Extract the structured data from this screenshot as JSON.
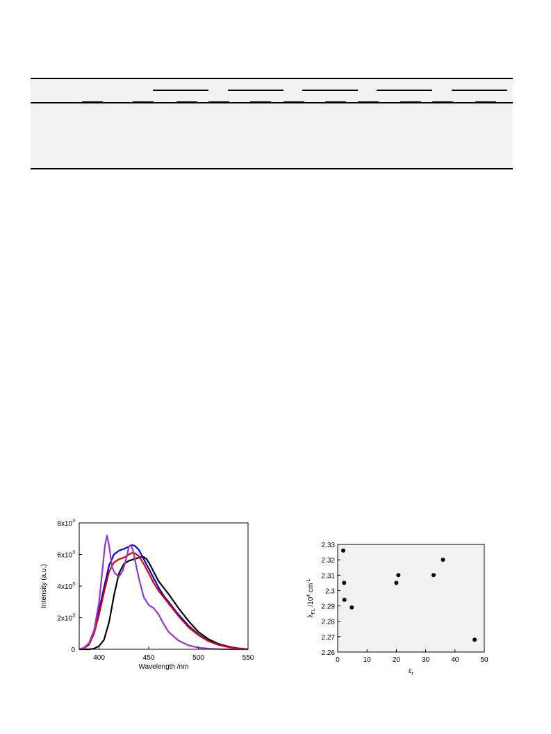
{
  "table": {
    "header_groups": 5,
    "subcolumns": 10,
    "rows": []
  },
  "chart_data": [
    {
      "type": "line",
      "title": "",
      "xlabel": "Wavelength /nm",
      "ylabel": "Intensity (a.u.)",
      "xlim": [
        380,
        550
      ],
      "ylim": [
        0,
        8000
      ],
      "xticks": [
        400,
        450,
        500,
        550
      ],
      "xtick_labels": [
        "400",
        "450",
        "500",
        "550"
      ],
      "yticks": [
        0,
        2000,
        4000,
        6000,
        8000
      ],
      "ytick_labels": [
        "0",
        "2x10",
        "4x10",
        "6x10",
        "8x10"
      ],
      "ytick_exponents": [
        "",
        "3",
        "3",
        "3",
        "3"
      ],
      "grid": false,
      "series": [
        {
          "color": "#000000",
          "x": [
            380,
            390,
            395,
            400,
            405,
            410,
            415,
            420,
            425,
            430,
            435,
            440,
            443,
            445,
            448,
            450,
            455,
            460,
            465,
            470,
            480,
            490,
            500,
            510,
            520,
            530,
            540,
            550
          ],
          "y": [
            0,
            0,
            50,
            200,
            600,
            1700,
            3400,
            4800,
            5400,
            5600,
            5700,
            5800,
            5850,
            5840,
            5700,
            5500,
            4900,
            4300,
            3900,
            3500,
            2600,
            1800,
            1100,
            650,
            350,
            170,
            60,
            0
          ]
        },
        {
          "color": "#0000dd",
          "x": [
            380,
            385,
            390,
            395,
            400,
            405,
            410,
            415,
            420,
            425,
            430,
            433,
            436,
            440,
            445,
            450,
            455,
            460,
            465,
            470,
            480,
            490,
            500,
            510,
            520,
            530,
            540,
            550
          ],
          "y": [
            0,
            80,
            400,
            1200,
            2500,
            3900,
            5300,
            6000,
            6250,
            6350,
            6500,
            6600,
            6550,
            6300,
            5700,
            5100,
            4500,
            3900,
            3400,
            3000,
            2200,
            1500,
            950,
            550,
            300,
            150,
            50,
            0
          ]
        },
        {
          "color": "#dd0000",
          "x": [
            380,
            385,
            390,
            395,
            400,
            405,
            410,
            415,
            420,
            425,
            430,
            433,
            436,
            440,
            445,
            450,
            455,
            460,
            465,
            470,
            480,
            490,
            500,
            510,
            520,
            530,
            540,
            550
          ],
          "y": [
            0,
            60,
            300,
            1000,
            2200,
            3600,
            4900,
            5500,
            5700,
            5800,
            6000,
            6100,
            6080,
            5900,
            5400,
            4800,
            4200,
            3700,
            3300,
            2900,
            2100,
            1400,
            900,
            520,
            280,
            140,
            50,
            0
          ]
        },
        {
          "color": "#9933cc",
          "x": [
            380,
            385,
            390,
            395,
            400,
            403,
            406,
            408,
            410,
            413,
            416,
            420,
            424,
            428,
            430,
            432,
            434,
            436,
            440,
            445,
            450,
            455,
            460,
            465,
            470,
            480,
            490,
            500,
            510,
            520,
            530,
            540,
            550
          ],
          "y": [
            0,
            100,
            400,
            1200,
            3000,
            4800,
            6600,
            7200,
            6600,
            5200,
            4800,
            4600,
            5000,
            5900,
            6500,
            6600,
            6300,
            5700,
            4500,
            3300,
            2800,
            2600,
            2200,
            1600,
            1100,
            550,
            250,
            100,
            40,
            15,
            5,
            0,
            0
          ]
        }
      ]
    },
    {
      "type": "scatter",
      "title": "",
      "xlabel": "ε",
      "xlabel_sub": "r",
      "ylabel": "λ",
      "ylabel_sub": "FL",
      "ylabel_rest": " /10",
      "ylabel_sup": "4",
      "ylabel_unit": " cm",
      "ylabel_unit_sup": "-1",
      "xlim": [
        0,
        50
      ],
      "ylim": [
        2.26,
        2.33
      ],
      "xticks": [
        0,
        10,
        20,
        30,
        40,
        50
      ],
      "xtick_labels": [
        "0",
        "10",
        "20",
        "30",
        "40",
        "50"
      ],
      "yticks": [
        2.26,
        2.27,
        2.28,
        2.29,
        2.3,
        2.31,
        2.32,
        2.33
      ],
      "ytick_labels": [
        "2.26",
        "2.27",
        "2.28",
        "2.29",
        "2.3",
        "2.31",
        "2.32",
        "2.33"
      ],
      "grid": false,
      "x": [
        1.9,
        2.2,
        2.3,
        4.8,
        20.0,
        20.7,
        32.7,
        35.9,
        46.7
      ],
      "y": [
        2.326,
        2.305,
        2.294,
        2.289,
        2.305,
        2.31,
        2.31,
        2.32,
        2.268
      ]
    }
  ]
}
